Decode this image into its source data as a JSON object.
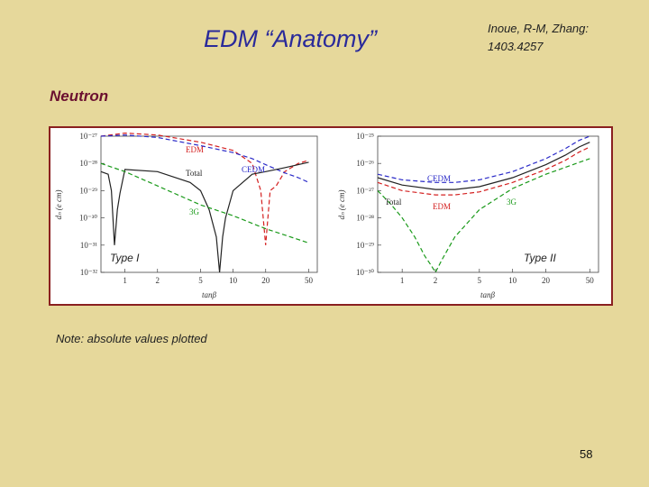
{
  "slide": {
    "title": "EDM “Anatomy”",
    "reference": "Inoue, R-M, Zhang: 1403.4257",
    "section": "Neutron",
    "note": "Note: absolute values plotted",
    "page_number": "58"
  },
  "colors": {
    "background": "#e6d89b",
    "title": "#2a2a9a",
    "section": "#6b1030",
    "frame": "#8a2020",
    "EDM": "#d42020",
    "CEDM": "#2a2ac8",
    "Total": "#222222",
    "3G": "#1a9a1a"
  },
  "chart_data": [
    {
      "type": "line",
      "label": "Type I",
      "xlabel": "tanβ",
      "ylabel": "dₙ (e cm)",
      "xscale": "log",
      "yscale": "log",
      "xlim": [
        0.6,
        60
      ],
      "ylim": [
        1e-32,
        1e-27
      ],
      "xticks": [
        "1",
        "2",
        "5",
        "10",
        "20",
        "50"
      ],
      "yticks": [
        "10⁻²⁷",
        "10⁻²⁸",
        "10⁻²⁹",
        "10⁻³⁰",
        "10⁻³¹",
        "10⁻³²"
      ],
      "series": [
        {
          "name": "EDM",
          "color": "#d42020",
          "style": "dashed",
          "x": [
            0.6,
            1,
            2,
            5,
            10,
            15,
            18,
            20,
            22,
            25,
            30,
            40,
            50
          ],
          "y": [
            1e-27,
            1.3e-27,
            1.1e-27,
            6e-28,
            3e-28,
            1e-28,
            1e-29,
            1e-31,
            1e-29,
            1.5e-29,
            5e-29,
            1e-28,
            1.3e-28
          ]
        },
        {
          "name": "CEDM",
          "color": "#2a2ac8",
          "style": "dashed",
          "x": [
            0.6,
            1,
            2,
            5,
            10,
            15,
            20,
            30,
            40,
            50
          ],
          "y": [
            1e-27,
            1.1e-27,
            9e-28,
            4.5e-28,
            2.5e-28,
            1.5e-28,
            9e-29,
            4.5e-29,
            3e-29,
            2e-29
          ]
        },
        {
          "name": "Total",
          "color": "#222222",
          "style": "solid",
          "x": [
            0.6,
            0.7,
            0.75,
            0.8,
            0.85,
            0.9,
            1,
            2,
            4,
            5,
            6,
            7,
            7.5,
            8,
            8.5,
            10,
            15,
            20,
            30,
            40,
            50
          ],
          "y": [
            5e-29,
            4e-29,
            1e-29,
            1e-31,
            2e-30,
            8e-30,
            6e-29,
            5e-29,
            2e-29,
            1e-29,
            2e-30,
            2e-31,
            1e-32,
            2e-31,
            1e-30,
            1e-29,
            4e-29,
            5e-29,
            7e-29,
            9e-29,
            1.1e-28
          ]
        },
        {
          "name": "3G",
          "color": "#1a9a1a",
          "style": "dashed",
          "x": [
            0.6,
            1,
            2,
            5,
            10,
            20,
            50
          ],
          "y": [
            1e-28,
            5e-29,
            1.5e-29,
            3e-30,
            1.2e-30,
            4e-31,
            1.2e-31
          ]
        }
      ]
    },
    {
      "type": "line",
      "label": "Type II",
      "xlabel": "tanβ",
      "ylabel": "dₙ (e cm)",
      "xscale": "log",
      "yscale": "log",
      "xlim": [
        0.6,
        60
      ],
      "ylim": [
        1e-30,
        1e-25
      ],
      "xticks": [
        "1",
        "2",
        "5",
        "10",
        "20",
        "50"
      ],
      "yticks": [
        "10⁻²⁵",
        "10⁻²⁶",
        "10⁻²⁷",
        "10⁻²⁸",
        "10⁻²⁹",
        "10⁻³⁰"
      ],
      "series": [
        {
          "name": "CEDM",
          "color": "#2a2ac8",
          "style": "dashed",
          "x": [
            0.6,
            1,
            2,
            3,
            5,
            10,
            20,
            30,
            40,
            50
          ],
          "y": [
            4e-27,
            2.5e-27,
            2e-27,
            2e-27,
            2.5e-27,
            5e-27,
            1.5e-26,
            3.5e-26,
            7e-26,
            1e-25
          ]
        },
        {
          "name": "Total",
          "color": "#222222",
          "style": "solid",
          "x": [
            0.6,
            1,
            2,
            3,
            5,
            10,
            20,
            30,
            40,
            50
          ],
          "y": [
            3e-27,
            1.6e-27,
            1.1e-27,
            1.1e-27,
            1.4e-27,
            3e-27,
            9e-27,
            2e-26,
            4e-26,
            6e-26
          ]
        },
        {
          "name": "EDM",
          "color": "#d42020",
          "style": "dashed",
          "x": [
            0.6,
            1,
            2,
            3,
            5,
            10,
            20,
            30,
            40,
            50
          ],
          "y": [
            2e-27,
            1e-27,
            7e-28,
            7e-28,
            9e-28,
            2e-27,
            6e-27,
            1.3e-26,
            2.6e-26,
            4e-26
          ]
        },
        {
          "name": "3G",
          "color": "#1a9a1a",
          "style": "dashed",
          "x": [
            0.6,
            0.8,
            1,
            1.3,
            1.6,
            1.8,
            2,
            2.3,
            3,
            5,
            10,
            20,
            50
          ],
          "y": [
            1e-27,
            3e-28,
            1e-28,
            2e-29,
            4e-30,
            2e-30,
            1e-30,
            3e-30,
            2e-29,
            2e-28,
            1.2e-27,
            4e-27,
            1.5e-26
          ]
        }
      ]
    }
  ],
  "curve_labels": {
    "type1": [
      {
        "text": "EDM",
        "color": "#d42020"
      },
      {
        "text": "Total",
        "color": "#222222"
      },
      {
        "text": "CEDM",
        "color": "#2a2ac8"
      },
      {
        "text": "3G",
        "color": "#1a9a1a"
      }
    ],
    "type2": [
      {
        "text": "CEDM",
        "color": "#2a2ac8"
      },
      {
        "text": "Total",
        "color": "#222222"
      },
      {
        "text": "EDM",
        "color": "#d42020"
      },
      {
        "text": "3G",
        "color": "#1a9a1a"
      }
    ]
  }
}
